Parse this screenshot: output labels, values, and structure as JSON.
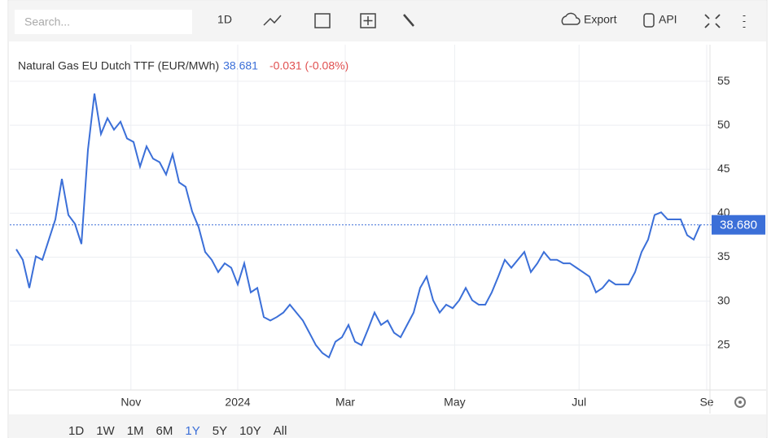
{
  "toolbar": {
    "search_placeholder": "Search...",
    "interval": "1D",
    "export": "Export",
    "api": "API"
  },
  "chart_data": {
    "type": "line",
    "title": "Natural Gas EU Dutch TTF (EUR/MWh)",
    "last": "38.681",
    "change": "-0.031 (-0.08%)",
    "color": "#3b6fd8",
    "grid": true,
    "values": [
      35.9,
      34.7,
      31.5,
      35.1,
      34.7,
      37,
      39.3,
      43.9,
      39.8,
      38.8,
      36.5,
      47.2,
      53.6,
      49,
      50.8,
      49.5,
      50.4,
      48.5,
      48.1,
      45.3,
      47.6,
      46.2,
      45.8,
      44.4,
      46.7,
      43.5,
      43,
      40.2,
      38.4,
      35.6,
      34.7,
      33.3,
      34.3,
      33.8,
      31.9,
      34.3,
      31,
      31.5,
      28.2,
      27.8,
      28.2,
      28.7,
      29.6,
      28.7,
      27.8,
      26.4,
      25,
      24.1,
      23.6,
      25.4,
      25.9,
      27.3,
      25.4,
      25,
      26.8,
      28.7,
      27.3,
      27.8,
      26.4,
      25.9,
      27.3,
      28.7,
      31.5,
      32.8,
      30.1,
      28.7,
      29.6,
      29.2,
      30.1,
      31.5,
      30.1,
      29.6,
      29.6,
      31,
      32.8,
      34.7,
      33.8,
      34.7,
      35.6,
      33.3,
      34.3,
      35.6,
      34.7,
      34.7,
      34.3,
      34.3,
      33.8,
      33.3,
      32.8,
      31,
      31.5,
      32.4,
      31.9,
      31.9,
      31.9,
      33.3,
      35.6,
      37,
      39.8,
      40.1,
      39.3,
      39.3,
      39.3,
      37.5,
      37,
      38.7
    ],
    "xlim": [
      0,
      106
    ],
    "xticks": [
      {
        "value": 17.6,
        "label": "Nov"
      },
      {
        "value": 34,
        "label": "2024"
      },
      {
        "value": 50.5,
        "label": "Mar"
      },
      {
        "value": 67.3,
        "label": "May"
      },
      {
        "value": 86.4,
        "label": "Jul"
      },
      {
        "value": 106,
        "label": "Se"
      }
    ],
    "ylim": [
      19.9,
      58.7
    ],
    "yticks": [
      25,
      30,
      35,
      40,
      45,
      50,
      55
    ],
    "price_line": {
      "value": 38.68,
      "label": "38.680"
    }
  },
  "range_buttons": [
    "1D",
    "1W",
    "1M",
    "6M",
    "1Y",
    "5Y",
    "10Y",
    "All"
  ],
  "active_range": 4
}
